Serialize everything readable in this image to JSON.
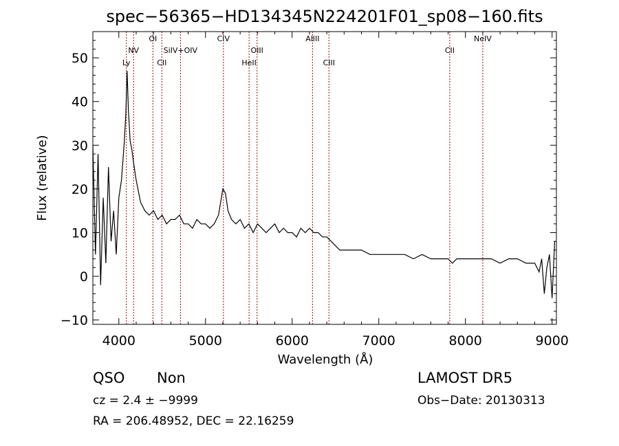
{
  "chart_data": {
    "type": "line",
    "title": "spec−56365−HD134345N224201F01_sp08−160.fits",
    "xlabel": "Wavelength (Å)",
    "ylabel": "Flux (relative)",
    "xlim": [
      3700,
      9050
    ],
    "ylim": [
      -11,
      56
    ],
    "xticks": [
      4000,
      5000,
      6000,
      7000,
      8000,
      9000
    ],
    "yticks": [
      -10,
      0,
      10,
      20,
      30,
      40,
      50
    ],
    "ytick_labels": [
      "−10",
      "0",
      "10",
      "20",
      "30",
      "40",
      "50"
    ],
    "grid": false,
    "line_color": "#000000",
    "marker_color": "#a00000",
    "spectrum": {
      "x": [
        3700,
        3730,
        3760,
        3790,
        3820,
        3850,
        3880,
        3910,
        3940,
        3970,
        4000,
        4030,
        4060,
        4080,
        4095,
        4110,
        4130,
        4150,
        4170,
        4200,
        4250,
        4300,
        4350,
        4400,
        4450,
        4500,
        4550,
        4600,
        4650,
        4700,
        4750,
        4800,
        4850,
        4900,
        4950,
        5000,
        5050,
        5100,
        5150,
        5200,
        5230,
        5260,
        5300,
        5350,
        5400,
        5450,
        5500,
        5550,
        5600,
        5650,
        5700,
        5750,
        5800,
        5850,
        5900,
        5950,
        6000,
        6050,
        6100,
        6150,
        6200,
        6250,
        6300,
        6350,
        6400,
        6450,
        6500,
        6550,
        6600,
        6700,
        6800,
        6900,
        7000,
        7100,
        7200,
        7300,
        7400,
        7500,
        7600,
        7700,
        7800,
        7850,
        7900,
        8000,
        8100,
        8200,
        8300,
        8400,
        8500,
        8600,
        8700,
        8800,
        8850,
        8880,
        8910,
        8940,
        8970,
        9000,
        9030
      ],
      "y": [
        30,
        5,
        28,
        -2,
        18,
        3,
        25,
        8,
        15,
        5,
        18,
        22,
        30,
        37,
        47,
        38,
        31,
        29,
        26,
        22,
        17,
        15,
        14,
        15,
        13,
        14,
        12,
        13,
        13,
        14,
        12,
        12,
        11,
        13,
        12,
        12,
        11,
        12,
        14,
        20,
        19,
        15,
        13,
        12,
        13,
        11,
        12,
        10,
        12,
        11,
        10,
        11,
        12,
        10,
        11,
        10,
        10,
        9,
        11,
        10,
        11,
        10,
        10,
        9,
        9,
        8,
        7,
        6,
        6,
        6,
        6,
        5,
        5,
        5,
        5,
        5,
        4,
        5,
        4,
        4,
        4,
        3,
        4,
        4,
        4,
        4,
        4,
        3,
        4,
        4,
        3,
        3,
        1,
        4,
        -4,
        2,
        5,
        -5,
        8
      ]
    },
    "lines": [
      {
        "name": "Ly",
        "x": 4087
      },
      {
        "name": "NV",
        "x": 4170
      },
      {
        "name": "OI",
        "x": 4393
      },
      {
        "name": "CII",
        "x": 4496
      },
      {
        "name": "SiIV+OIV",
        "x": 4711
      },
      {
        "name": "CIV",
        "x": 5207
      },
      {
        "name": "HeII",
        "x": 5503
      },
      {
        "name": "OIII",
        "x": 5595
      },
      {
        "name": "AlIII",
        "x": 6235
      },
      {
        "name": "CIII",
        "x": 6425
      },
      {
        "name": "CII",
        "x": 7819
      },
      {
        "name": "NeIV",
        "x": 8200
      }
    ]
  },
  "info": {
    "class": "QSO",
    "subclass": "Non",
    "survey": "LAMOST DR5",
    "cz": "cz = 2.4 ± −9999",
    "obs_date": "Obs−Date: 20130313",
    "coords": "RA = 206.48952, DEC =  22.16259"
  }
}
